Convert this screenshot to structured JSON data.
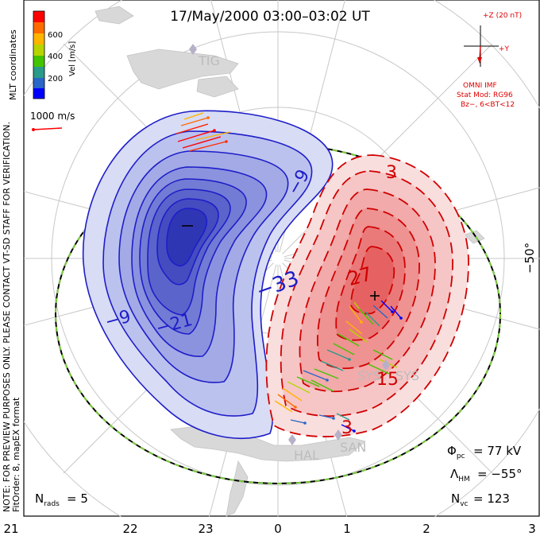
{
  "title": "17/May/2000 03:00–03:02 UT",
  "colorbar": {
    "header": "MLT coordinates",
    "axis_label": "Vel [m/s]",
    "ticks": [
      "600",
      "400",
      "200"
    ],
    "colors": [
      "#ff0000",
      "#ff6a00",
      "#ffb400",
      "#b8d400",
      "#44c400",
      "#2a9a8a",
      "#2a66c8",
      "#0000ff"
    ]
  },
  "vector_scale": "1000 m/s",
  "imf": {
    "z_label": "+Z (20 nT)",
    "y_label": "+Y",
    "source": "OMNI IMF",
    "model_line1": "Stat Mod: RG96",
    "model_line2": "Bz−, 6<BT<12"
  },
  "stations": [
    "TIG",
    "HAL",
    "SAN",
    "SYS"
  ],
  "latitude_label": "−50°",
  "side_note_line1": "NOTE: FOR PREVIEW PURPOSES ONLY. PLEASE CONTACT VT-SD STAFF FOR VERIFICATION.",
  "side_note_line2": "FitOrder: 8, mapEX format",
  "contours": {
    "negative_labels": [
      "−9",
      "−33",
      "−21",
      "−9"
    ],
    "positive_labels": [
      "3",
      "27",
      "15",
      "3"
    ],
    "min_marker": "−",
    "max_marker": "+"
  },
  "stats": {
    "phi_pc_label": "Φ",
    "phi_pc_sub": "pc",
    "phi_pc_value": "= 77 kV",
    "lambda_hm_label": "Λ",
    "lambda_hm_sub": "HM",
    "lambda_hm_value": "= −55°",
    "nvc_label": "N",
    "nvc_sub": "vc",
    "nvc_value": "= 123",
    "nrads_label": "N",
    "nrads_sub": "rads",
    "nrads_value": "= 5"
  },
  "mlt_ticks": [
    "21",
    "22",
    "23",
    "0",
    "1",
    "2",
    "3"
  ],
  "colors": {
    "negative_cell": "#1e1ec8",
    "positive_cell": "#e01010",
    "hmb": "#7ccc3c",
    "grid": "#c8c8c8",
    "land": "#d8d8d8",
    "annotation_red": "#e00000"
  }
}
